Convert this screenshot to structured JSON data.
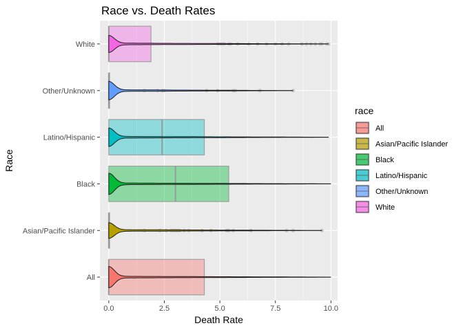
{
  "chart_data": {
    "type": "boxplot-violin",
    "title": "Race vs. Death Rates",
    "xlabel": "Death Rate",
    "ylabel": "Race",
    "xlim": [
      -0.4,
      10.3
    ],
    "xticks": [
      0.0,
      2.5,
      5.0,
      7.5,
      10.0
    ],
    "xtick_labels": [
      "0.0",
      "2.5",
      "5.0",
      "7.5",
      "10.0"
    ],
    "grid": true,
    "legend": {
      "title": "race",
      "placement": "right",
      "entries": [
        {
          "label": "All",
          "color": "#F8766D"
        },
        {
          "label": "Asian/Pacific Islander",
          "color": "#B79F00"
        },
        {
          "label": "Black",
          "color": "#00BA38"
        },
        {
          "label": "Latino/Hispanic",
          "color": "#00BFC4"
        },
        {
          "label": "Other/Unknown",
          "color": "#619CFF"
        },
        {
          "label": "White",
          "color": "#F564E3"
        }
      ]
    },
    "categories": [
      "All",
      "Asian/Pacific Islander",
      "Black",
      "Latino/Hispanic",
      "Other/Unknown",
      "White"
    ],
    "series": [
      {
        "name": "All",
        "color": "#F8766D",
        "box": {
          "min": 0.0,
          "q1": 0.0,
          "median": 0.0,
          "q3": 4.3,
          "max": 10.0
        },
        "points": [],
        "violin_peak": 0.7
      },
      {
        "name": "Asian/Pacific Islander",
        "color": "#B79F00",
        "box": {
          "min": 0.0,
          "q1": 0.0,
          "median": 0.0,
          "q3": 0.0,
          "max": 9.6
        },
        "points": [
          1.6,
          2.3,
          2.6,
          2.8,
          2.9,
          3.0,
          3.1,
          3.2,
          3.4,
          3.6,
          4.2,
          4.6,
          5.3,
          5.4,
          5.6,
          6.4,
          8.0,
          8.3,
          9.6
        ],
        "violin_peak": 0.5
      },
      {
        "name": "Black",
        "color": "#00BA38",
        "box": {
          "min": 0.0,
          "q1": 0.0,
          "median": 3.0,
          "q3": 5.4,
          "max": 10.0
        },
        "points": [],
        "violin_peak": 0.7
      },
      {
        "name": "Latino/Hispanic",
        "color": "#00BFC4",
        "box": {
          "min": 0.0,
          "q1": 0.0,
          "median": 2.4,
          "q3": 4.3,
          "max": 9.9
        },
        "points": [],
        "violin_peak": 0.6
      },
      {
        "name": "Other/Unknown",
        "color": "#619CFF",
        "box": {
          "min": 0.0,
          "q1": 0.0,
          "median": 0.0,
          "q3": 0.0,
          "max": 8.3
        },
        "points": [
          1.6,
          2.2,
          2.4,
          2.5,
          4.4,
          4.9,
          5.6,
          5.7,
          6.8,
          8.3
        ],
        "violin_peak": 0.6
      },
      {
        "name": "White",
        "color": "#F564E3",
        "box": {
          "min": 0.0,
          "q1": 0.0,
          "median": 0.0,
          "q3": 1.9,
          "max": 9.9
        },
        "points": [
          4.9,
          5.0,
          5.1,
          5.2,
          5.4,
          5.5,
          5.8,
          6.3,
          6.7,
          7.1,
          7.5,
          7.8,
          8.1,
          8.7,
          8.9,
          9.1,
          9.3,
          9.5,
          9.6,
          9.8,
          9.9
        ],
        "violin_peak": 0.55
      }
    ]
  }
}
